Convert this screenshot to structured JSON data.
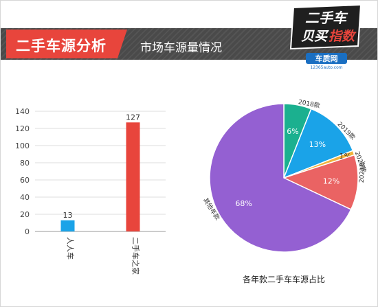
{
  "header": {
    "section_title": "二手车源分析",
    "section_subtitle": "市场车源量情况"
  },
  "logo": {
    "line1": "二手车",
    "line2a": "贝买",
    "line2b": "指数",
    "brand": "车质网",
    "site": "12365auto.com"
  },
  "colors": {
    "header_bg": "#4a4a4a",
    "accent_red": "#e8453c",
    "bar_blue": "#1aa3e8",
    "bar_red": "#e8453c"
  },
  "chart_data": [
    {
      "type": "bar",
      "categories": [
        "人人车",
        "二手车之家"
      ],
      "values": [
        13,
        127
      ],
      "colors": [
        "#1aa3e8",
        "#e8453c"
      ],
      "ylim": [
        0,
        140
      ],
      "yticks": [
        0,
        20,
        40,
        60,
        80,
        100,
        120,
        140
      ],
      "grid": true
    },
    {
      "type": "pie",
      "title": "各年款二手车车源占比",
      "slices": [
        {
          "label": "2018款",
          "value": 6,
          "pct": "6%",
          "color": "#1bb08f"
        },
        {
          "label": "2019款",
          "value": 13,
          "pct": "13%",
          "color": "#1aa3e8"
        },
        {
          "label": "2020款",
          "value": 1,
          "pct": "1%",
          "color": "#f0b23c"
        },
        {
          "label": "2021款",
          "value": 12,
          "pct": "12%",
          "color": "#ea6363"
        },
        {
          "label": "其他年款",
          "value": 68,
          "pct": "68%",
          "color": "#9460d2"
        }
      ]
    }
  ]
}
